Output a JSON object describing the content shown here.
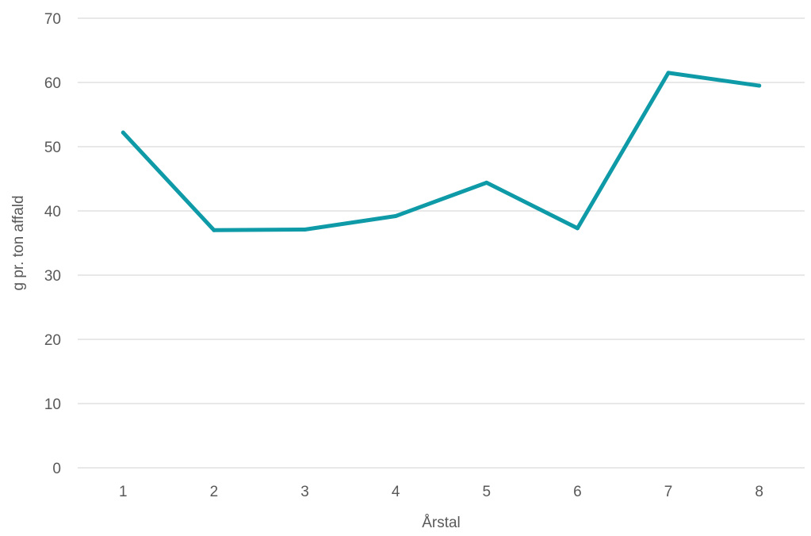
{
  "chart_data": {
    "type": "line",
    "title": "",
    "xlabel": "Årstal",
    "ylabel": "g pr. ton affald",
    "categories": [
      "1",
      "2",
      "3",
      "4",
      "5",
      "6",
      "7",
      "8"
    ],
    "series": [
      {
        "values": [
          52.2,
          37.0,
          37.1,
          39.2,
          44.4,
          37.3,
          61.5,
          59.5
        ],
        "color": "#0e9aa7"
      }
    ],
    "ylim": [
      0,
      70
    ],
    "yticks": [
      0,
      10,
      20,
      30,
      40,
      50,
      60,
      70
    ],
    "grid": true,
    "legend": "none"
  }
}
